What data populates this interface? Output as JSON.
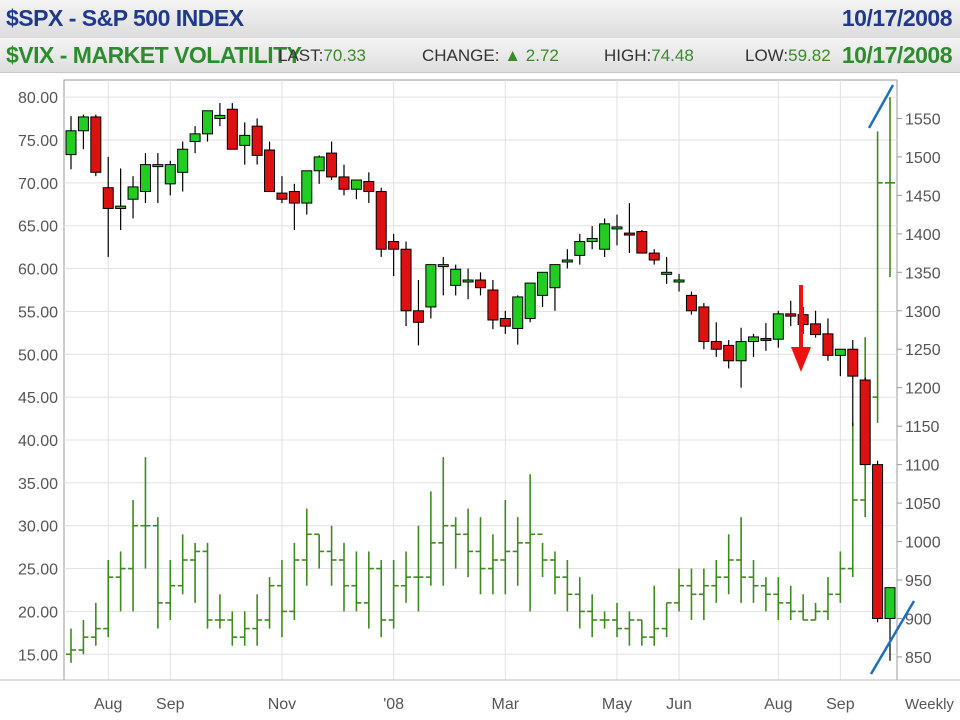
{
  "header": {
    "spx_title": "$SPX - S&P 500 INDEX",
    "spx_date": "10/17/2008",
    "vix_title": "$VIX - MARKET VOLATILITY",
    "vix_date": "10/17/2008",
    "last_label": "LAST:",
    "last_value": "70.33",
    "change_label": "CHANGE:",
    "change_arrow": "▲",
    "change_value": "2.72",
    "high_label": "HIGH:",
    "high_value": "74.48",
    "low_label": "LOW:",
    "low_value": "59.82"
  },
  "colors": {
    "spx_title": "#1f3a8a",
    "vix_title": "#2e8b2e",
    "up_candle": "#22cc22",
    "down_candle": "#dd1111",
    "vix_bar": "#3f8a1f",
    "annotation_arrow": "#ee1111",
    "annotation_lines": "#1f6fbf"
  },
  "chart_data": {
    "type": "candlestick + ohlc",
    "left_axis": {
      "series": "$VIX",
      "ylim": [
        12,
        82
      ],
      "ticks": [
        "15.00",
        "20.00",
        "25.00",
        "30.00",
        "35.00",
        "40.00",
        "45.00",
        "50.00",
        "55.00",
        "60.00",
        "65.00",
        "70.00",
        "75.00",
        "80.00"
      ]
    },
    "right_axis": {
      "series": "$SPX",
      "ylim": [
        820,
        1600
      ],
      "ticks": [
        "850",
        "900",
        "950",
        "1000",
        "1050",
        "1100",
        "1150",
        "1200",
        "1250",
        "1300",
        "1350",
        "1400",
        "1450",
        "1500",
        "1550"
      ]
    },
    "x_labels": [
      {
        "week": 3,
        "label": "Aug"
      },
      {
        "week": 8,
        "label": "Sep"
      },
      {
        "week": 17,
        "label": "Nov"
      },
      {
        "week": 26,
        "label": "'08"
      },
      {
        "week": 35,
        "label": "Mar"
      },
      {
        "week": 44,
        "label": "May"
      },
      {
        "week": 49,
        "label": "Jun"
      },
      {
        "week": 57,
        "label": "Aug"
      },
      {
        "week": 62,
        "label": "Sep"
      }
    ],
    "period_label": "Weekly",
    "spx": [
      [
        1503,
        1553,
        1484,
        1534
      ],
      [
        1534,
        1555,
        1510,
        1552
      ],
      [
        1552,
        1555,
        1475,
        1480
      ],
      [
        1460,
        1500,
        1370,
        1433
      ],
      [
        1433,
        1485,
        1405,
        1436
      ],
      [
        1445,
        1475,
        1420,
        1461
      ],
      [
        1455,
        1505,
        1440,
        1490
      ],
      [
        1490,
        1505,
        1440,
        1490
      ],
      [
        1465,
        1495,
        1450,
        1490
      ],
      [
        1480,
        1520,
        1455,
        1510
      ],
      [
        1520,
        1540,
        1505,
        1530
      ],
      [
        1530,
        1560,
        1520,
        1560
      ],
      [
        1550,
        1570,
        1540,
        1554
      ],
      [
        1562,
        1570,
        1510,
        1510
      ],
      [
        1515,
        1545,
        1490,
        1528
      ],
      [
        1540,
        1550,
        1490,
        1502
      ],
      [
        1509,
        1520,
        1455,
        1455
      ],
      [
        1453,
        1475,
        1440,
        1445
      ],
      [
        1455,
        1465,
        1405,
        1440
      ],
      [
        1440,
        1482,
        1425,
        1482
      ],
      [
        1482,
        1502,
        1465,
        1500
      ],
      [
        1505,
        1520,
        1470,
        1474
      ],
      [
        1474,
        1490,
        1450,
        1458
      ],
      [
        1458,
        1470,
        1445,
        1470
      ],
      [
        1468,
        1480,
        1440,
        1455
      ],
      [
        1455,
        1460,
        1370,
        1380
      ],
      [
        1390,
        1400,
        1345,
        1380
      ],
      [
        1380,
        1390,
        1280,
        1300
      ],
      [
        1300,
        1340,
        1255,
        1285
      ],
      [
        1305,
        1360,
        1290,
        1360
      ],
      [
        1360,
        1370,
        1320,
        1360
      ],
      [
        1333,
        1360,
        1320,
        1354
      ],
      [
        1340,
        1355,
        1315,
        1340
      ],
      [
        1340,
        1350,
        1320,
        1330
      ],
      [
        1327,
        1340,
        1276,
        1288
      ],
      [
        1290,
        1300,
        1270,
        1280
      ],
      [
        1277,
        1320,
        1256,
        1318
      ],
      [
        1290,
        1336,
        1285,
        1336
      ],
      [
        1320,
        1350,
        1305,
        1350
      ],
      [
        1330,
        1360,
        1300,
        1360
      ],
      [
        1366,
        1380,
        1355,
        1366
      ],
      [
        1372,
        1400,
        1360,
        1390
      ],
      [
        1390,
        1410,
        1380,
        1394
      ],
      [
        1380,
        1420,
        1370,
        1413
      ],
      [
        1407,
        1425,
        1385,
        1409
      ],
      [
        1401,
        1440,
        1375,
        1400
      ],
      [
        1403,
        1405,
        1375,
        1375
      ],
      [
        1375,
        1380,
        1360,
        1366
      ],
      [
        1350,
        1370,
        1335,
        1350
      ],
      [
        1340,
        1348,
        1325,
        1340
      ],
      [
        1320,
        1325,
        1295,
        1300
      ],
      [
        1305,
        1310,
        1250,
        1260
      ],
      [
        1260,
        1285,
        1240,
        1250
      ],
      [
        1255,
        1262,
        1225,
        1235
      ],
      [
        1235,
        1278,
        1200,
        1260
      ],
      [
        1260,
        1270,
        1240,
        1266
      ],
      [
        1264,
        1284,
        1248,
        1263
      ],
      [
        1263,
        1300,
        1252,
        1296
      ],
      [
        1296,
        1313,
        1280,
        1293
      ],
      [
        1295,
        1305,
        1270,
        1282
      ],
      [
        1283,
        1300,
        1265,
        1269
      ],
      [
        1270,
        1290,
        1235,
        1242
      ],
      [
        1242,
        1250,
        1215,
        1250
      ],
      [
        1250,
        1262,
        1150,
        1215
      ],
      [
        1210,
        1213,
        1131,
        1100
      ],
      [
        1100,
        1105,
        895,
        900
      ],
      [
        900,
        940,
        845,
        940
      ]
    ],
    "vix": [
      [
        15,
        18,
        14,
        15.5
      ],
      [
        15.5,
        19,
        15,
        17
      ],
      [
        17,
        21,
        16,
        18
      ],
      [
        18,
        26,
        17,
        24
      ],
      [
        24,
        27,
        20,
        25
      ],
      [
        25,
        33,
        20,
        30
      ],
      [
        30,
        38,
        25,
        30
      ],
      [
        30,
        31,
        18,
        21
      ],
      [
        21,
        26,
        19,
        23
      ],
      [
        23,
        29,
        22,
        26
      ],
      [
        26,
        28,
        21,
        27
      ],
      [
        27,
        28,
        18,
        19
      ],
      [
        19,
        22,
        18,
        19
      ],
      [
        19,
        20,
        16,
        17
      ],
      [
        17,
        20,
        16,
        18
      ],
      [
        18,
        22,
        16,
        19
      ],
      [
        19,
        24,
        18,
        23
      ],
      [
        23,
        26,
        17,
        20
      ],
      [
        20,
        28,
        19,
        26
      ],
      [
        26,
        32,
        23,
        29
      ],
      [
        29,
        29,
        25,
        27
      ],
      [
        27,
        30,
        23,
        26
      ],
      [
        26,
        28,
        20,
        23
      ],
      [
        23,
        27,
        20,
        21
      ],
      [
        21,
        27,
        18,
        25
      ],
      [
        25,
        26,
        17,
        19
      ],
      [
        19,
        26,
        18,
        23
      ],
      [
        23,
        27,
        21,
        24
      ],
      [
        24,
        30,
        20,
        24
      ],
      [
        24,
        34,
        23,
        28
      ],
      [
        28,
        38,
        23,
        30
      ],
      [
        30,
        31,
        25,
        29
      ],
      [
        29,
        32,
        24,
        27
      ],
      [
        27,
        31,
        22,
        25
      ],
      [
        25,
        29,
        22,
        26
      ],
      [
        26,
        33,
        22,
        27
      ],
      [
        27,
        31,
        23,
        28
      ],
      [
        28,
        36,
        20,
        29
      ],
      [
        29,
        28,
        24,
        26
      ],
      [
        26,
        27,
        22,
        24
      ],
      [
        24,
        26,
        20,
        22
      ],
      [
        22,
        24,
        18,
        20
      ],
      [
        20,
        22,
        17,
        19
      ],
      [
        19,
        20,
        18,
        19
      ],
      [
        19,
        21,
        17,
        18
      ],
      [
        18,
        20,
        16,
        19
      ],
      [
        19,
        19,
        16,
        17
      ],
      [
        17,
        23,
        16,
        18
      ],
      [
        18,
        21,
        17,
        21
      ],
      [
        21,
        25,
        20,
        23
      ],
      [
        23,
        25,
        19,
        22
      ],
      [
        22,
        25,
        19,
        23
      ],
      [
        23,
        26,
        21,
        24
      ],
      [
        24,
        29,
        22,
        26
      ],
      [
        26,
        31,
        21,
        24
      ],
      [
        24,
        26,
        21,
        23
      ],
      [
        23,
        24,
        20,
        22
      ],
      [
        22,
        24,
        19,
        21
      ],
      [
        21,
        23,
        19,
        20
      ],
      [
        20,
        22,
        19,
        19
      ],
      [
        19,
        21,
        19,
        20
      ],
      [
        20,
        24,
        19,
        22
      ],
      [
        22,
        27,
        21,
        25
      ],
      [
        25,
        42,
        24,
        33
      ],
      [
        33,
        52,
        31,
        45
      ],
      [
        45,
        76,
        42,
        70
      ],
      [
        70,
        80,
        59,
        70
      ]
    ]
  }
}
